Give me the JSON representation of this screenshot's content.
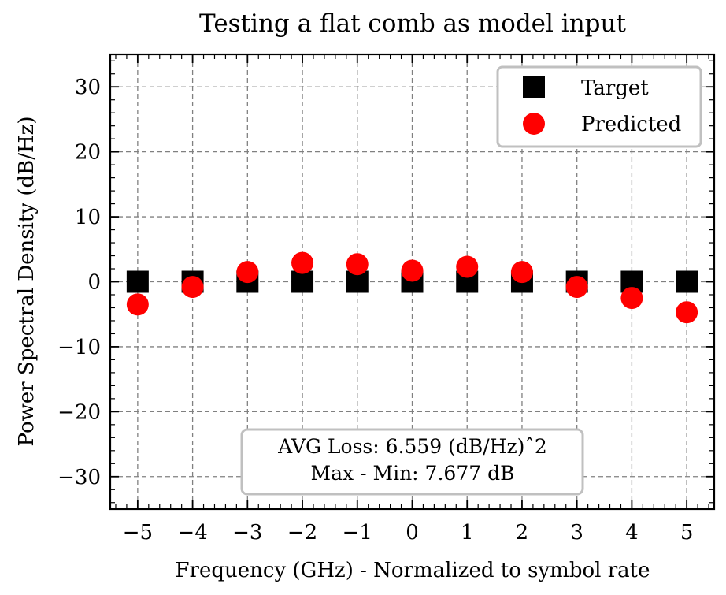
{
  "chart_data": {
    "type": "scatter",
    "title": "Testing a flat comb as model input",
    "xlabel": "Frequency (GHz) - Normalized to symbol rate",
    "ylabel": "Power Spectral Density (dB/Hz)",
    "xlim": [
      -5.5,
      5.5
    ],
    "ylim": [
      -35,
      35
    ],
    "x_ticks": [
      -5,
      -4,
      -3,
      -2,
      -1,
      0,
      1,
      2,
      3,
      4,
      5
    ],
    "x_tick_labels": [
      "−5",
      "−4",
      "−3",
      "−2",
      "−1",
      "0",
      "1",
      "2",
      "3",
      "4",
      "5"
    ],
    "y_ticks": [
      -30,
      -20,
      -10,
      0,
      10,
      20,
      30
    ],
    "y_tick_labels": [
      "−30",
      "−20",
      "−10",
      "0",
      "10",
      "20",
      "30"
    ],
    "grid": true,
    "legend_position": "top-right",
    "series": [
      {
        "name": "Target",
        "marker": "square",
        "color": "#000000",
        "x": [
          -5,
          -4,
          -3,
          -2,
          -1,
          0,
          1,
          2,
          3,
          4,
          5
        ],
        "y": [
          0,
          0,
          0,
          0,
          0,
          0,
          0,
          0,
          0,
          0,
          0
        ]
      },
      {
        "name": "Predicted",
        "marker": "circle",
        "color": "#ff0000",
        "x": [
          -5,
          -4,
          -3,
          -2,
          -1,
          0,
          1,
          2,
          3,
          4,
          5
        ],
        "y": [
          -3.5,
          -0.8,
          1.5,
          2.9,
          2.7,
          1.7,
          2.3,
          1.5,
          -0.8,
          -2.5,
          -4.7
        ]
      }
    ],
    "annotation": {
      "line1": "AVG Loss: 6.559 (dB/Hz)ˆ2",
      "line2": "Max - Min: 7.677 dB"
    }
  }
}
